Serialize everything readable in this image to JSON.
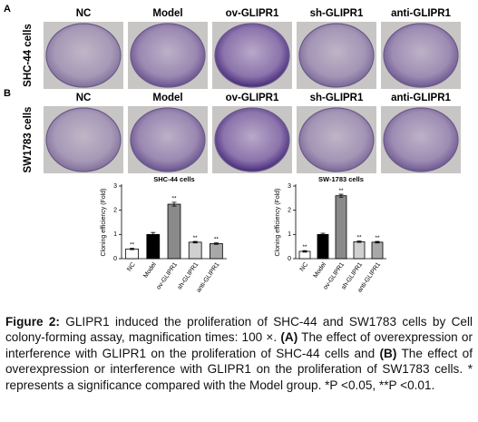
{
  "panels": [
    {
      "letter": "A",
      "row_label": "SHC-44 cells",
      "columns": [
        "NC",
        "Model",
        "ov-GLIPR1",
        "sh-GLIPR1",
        "anti-GLIPR1"
      ]
    },
    {
      "letter": "B",
      "row_label": "SW1783 cells",
      "columns": [
        "NC",
        "Model",
        "ov-GLIPR1",
        "sh-GLIPR1",
        "anti-GLIPR1"
      ]
    }
  ],
  "chart_data": [
    {
      "type": "bar",
      "title": "SHC-44 cells",
      "y_label": "Cloning efficiency (Fold)",
      "categories": [
        "NC",
        "Model",
        "ov-GLIPR1",
        "sh-GLIPR1",
        "anti-GLIPR1"
      ],
      "values": [
        0.4,
        1.0,
        2.25,
        0.68,
        0.62
      ],
      "errors": [
        0.03,
        0.08,
        0.08,
        0.03,
        0.03
      ],
      "annotations": [
        "**",
        null,
        "**",
        "**",
        "**"
      ],
      "colors": [
        "#ffffff",
        "#000000",
        "#8a8a8a",
        "#d0d0d0",
        "#a8a8a8"
      ],
      "ylim": [
        0,
        3
      ],
      "yticks": [
        0,
        1,
        2,
        3
      ]
    },
    {
      "type": "bar",
      "title": "SW-1783 cells",
      "y_label": "Cloning efficiency (Fold)",
      "categories": [
        "NC",
        "Model",
        "ov-GLIPR1",
        "sh-GLIPR1",
        "anti-GLIPR1"
      ],
      "values": [
        0.3,
        1.0,
        2.6,
        0.7,
        0.68
      ],
      "errors": [
        0.03,
        0.05,
        0.06,
        0.03,
        0.03
      ],
      "annotations": [
        "**",
        null,
        "**",
        "**",
        "**"
      ],
      "colors": [
        "#ffffff",
        "#000000",
        "#8a8a8a",
        "#d0d0d0",
        "#a8a8a8"
      ],
      "ylim": [
        0,
        3
      ],
      "yticks": [
        0,
        1,
        2,
        3
      ]
    }
  ],
  "caption": {
    "segments": [
      {
        "text": "Figure 2:",
        "bold": true
      },
      {
        "text": " GLIPR1 induced the proliferation of SHC-44 and SW1783 cells by Cell colony-forming assay, magnification times: 100 ×. ",
        "bold": false
      },
      {
        "text": "(A)",
        "bold": true
      },
      {
        "text": " The effect of overexpression or interference with GLIPR1 on the proliferation of SHC-44 cells and ",
        "bold": false
      },
      {
        "text": "(B)",
        "bold": true
      },
      {
        "text": " The effect of overexpression or interference with GLIPR1 on the proliferation of SW1783 cells. * represents a significance compared with the Model group. *P <0.05, **P <0.01.",
        "bold": false
      }
    ]
  }
}
